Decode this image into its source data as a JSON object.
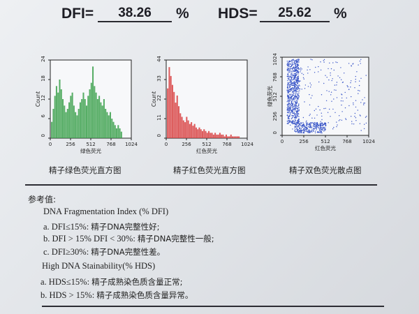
{
  "header": {
    "dfi_label": "DFI=",
    "dfi_value": "38.26",
    "dfi_unit": "%",
    "hds_label": "HDS=",
    "hds_value": "25.62",
    "hds_unit": "%"
  },
  "chart_data": [
    {
      "type": "bar",
      "caption": "精子绿色荧光直方图",
      "xlabel": "绿色荧光",
      "ylabel": "Count",
      "x_ticks": [
        "0",
        "256",
        "512",
        "768",
        "1024"
      ],
      "y_ticks": [
        "0",
        "6",
        "12",
        "18",
        "24"
      ],
      "xlim": [
        0,
        1024
      ],
      "ylim": [
        0,
        24
      ],
      "color": "#3aa04a",
      "x": [
        20,
        40,
        60,
        80,
        100,
        120,
        140,
        160,
        180,
        200,
        220,
        240,
        260,
        280,
        300,
        320,
        340,
        360,
        380,
        400,
        420,
        440,
        460,
        480,
        500,
        520,
        540,
        560,
        580,
        600,
        620,
        640,
        660,
        680,
        700,
        720,
        740,
        760,
        780,
        800,
        820,
        840,
        860,
        880,
        900
      ],
      "values": [
        5,
        9,
        13,
        16,
        14,
        18,
        15,
        12,
        10,
        8,
        9,
        11,
        13,
        14,
        10,
        8,
        7,
        9,
        11,
        12,
        14,
        12,
        10,
        13,
        15,
        17,
        22,
        16,
        14,
        12,
        13,
        11,
        10,
        12,
        9,
        8,
        7,
        8,
        6,
        5,
        4,
        3,
        4,
        3,
        2
      ]
    },
    {
      "type": "bar",
      "caption": "精子红色荧光直方图",
      "xlabel": "红色荧光",
      "ylabel": "Count",
      "x_ticks": [
        "0",
        "256",
        "512",
        "768",
        "1024"
      ],
      "y_ticks": [
        "0",
        "11",
        "22",
        "33",
        "44"
      ],
      "xlim": [
        0,
        1024
      ],
      "ylim": [
        0,
        44
      ],
      "color": "#d84040",
      "x": [
        20,
        40,
        60,
        80,
        100,
        120,
        140,
        160,
        180,
        200,
        220,
        240,
        260,
        280,
        300,
        320,
        340,
        360,
        380,
        400,
        420,
        440,
        460,
        480,
        500,
        520,
        540,
        560,
        580,
        600,
        620,
        640,
        660,
        680,
        700,
        720,
        740,
        760,
        780,
        800,
        820,
        840,
        860,
        880,
        900,
        920
      ],
      "values": [
        28,
        40,
        35,
        30,
        26,
        20,
        24,
        18,
        14,
        12,
        10,
        9,
        12,
        10,
        8,
        9,
        7,
        8,
        6,
        5,
        6,
        5,
        4,
        5,
        4,
        3,
        4,
        3,
        3,
        2,
        3,
        2,
        2,
        3,
        2,
        2,
        1,
        2,
        1,
        1,
        2,
        1,
        1,
        1,
        1,
        1
      ]
    },
    {
      "type": "scatter",
      "caption": "精子双色荧光散点图",
      "xlabel": "红色荧光",
      "ylabel": "绿色荧光",
      "x_ticks": [
        "0",
        "256",
        "512",
        "768",
        "1024"
      ],
      "y_ticks": [
        "0",
        "256",
        "512",
        "768",
        "1024"
      ],
      "xlim": [
        0,
        1024
      ],
      "ylim": [
        0,
        1024
      ],
      "color": "#3a56c8",
      "clusters": [
        {
          "x_range": [
            60,
            200
          ],
          "y_range": [
            150,
            1000
          ],
          "n": 700
        },
        {
          "x_range": [
            150,
            520
          ],
          "y_range": [
            30,
            170
          ],
          "n": 300
        },
        {
          "x_range": [
            60,
            1000
          ],
          "y_range": [
            60,
            1000
          ],
          "n": 220
        }
      ]
    }
  ],
  "reference": {
    "title": "参考值:",
    "dfi_heading": "DNA Fragmentation Index (% DFI)",
    "dfi_items": [
      {
        "prefix": "a. DFI≤15%:",
        "text": "精子DNA完整性好;"
      },
      {
        "prefix": "b. DFI > 15% DFI < 30%:",
        "text": "精子DNA完整性一般;"
      },
      {
        "prefix": "c. DFI≥30%:",
        "text": "精子DNA完整性差。"
      }
    ],
    "hds_heading": "High DNA Stainability(% HDS)",
    "hds_items": [
      {
        "prefix": "a. HDS≤15%:",
        "text": "精子成熟染色质含量正常;"
      },
      {
        "prefix": "b. HDS > 15%:",
        "text": "精子成熟染色质含量异常。"
      }
    ]
  }
}
